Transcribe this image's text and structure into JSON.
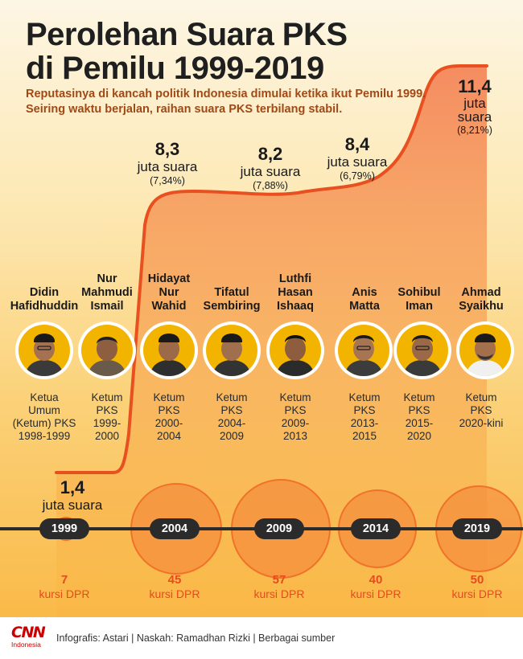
{
  "title": [
    "Perolehan Suara PKS",
    "di Pemilu 1999-2019"
  ],
  "subtitle": "Reputasinya di kancah politik Indonesia dimulai ketika ikut Pemilu 1999. Seiring waktu berjalan, raihan suara PKS terbilang stabil.",
  "votes": [
    {
      "value": "1,4",
      "unit": "juta suara",
      "pct": ""
    },
    {
      "value": "8,3",
      "unit": "juta suara",
      "pct": "(7,34%)"
    },
    {
      "value": "8,2",
      "unit": "juta suara",
      "pct": "(7,88%)"
    },
    {
      "value": "8,4",
      "unit": "juta suara",
      "pct": "(6,79%)"
    },
    {
      "value": "11,4",
      "unit": "juta suara",
      "pct": "(8,21%)"
    }
  ],
  "leaders": [
    {
      "name": [
        "Didin",
        "Hafidhuddin"
      ],
      "role": [
        "Ketua",
        "Umum",
        "(Ketum) PKS",
        "1998-1999"
      ]
    },
    {
      "name": [
        "Nur",
        "Mahmudi",
        "Ismail"
      ],
      "role": [
        "Ketum",
        "PKS",
        "1999-",
        "2000"
      ]
    },
    {
      "name": [
        "Hidayat",
        "Nur",
        "Wahid"
      ],
      "role": [
        "Ketum",
        "PKS",
        "2000-",
        "2004"
      ]
    },
    {
      "name": [
        "Tifatul",
        "Sembiring"
      ],
      "role": [
        "Ketum",
        "PKS",
        "2004-",
        "2009"
      ]
    },
    {
      "name": [
        "Luthfi",
        "Hasan",
        "Ishaaq"
      ],
      "role": [
        "Ketum",
        "PKS",
        "2009-",
        "2013"
      ]
    },
    {
      "name": [
        "Anis",
        "Matta"
      ],
      "role": [
        "Ketum",
        "PKS",
        "2013-",
        "2015"
      ]
    },
    {
      "name": [
        "Sohibul",
        "Iman"
      ],
      "role": [
        "Ketum",
        "PKS",
        "2015-",
        "2020"
      ]
    },
    {
      "name": [
        "Ahmad",
        "Syaikhu"
      ],
      "role": [
        "Ketum",
        "PKS",
        "2020-kini"
      ]
    }
  ],
  "elections": [
    {
      "year": "1999",
      "seats": "7",
      "seats_label": "kursi DPR"
    },
    {
      "year": "2004",
      "seats": "45",
      "seats_label": "kursi DPR"
    },
    {
      "year": "2009",
      "seats": "57",
      "seats_label": "kursi DPR"
    },
    {
      "year": "2014",
      "seats": "40",
      "seats_label": "kursi DPR"
    },
    {
      "year": "2019",
      "seats": "50",
      "seats_label": "kursi DPR"
    }
  ],
  "logo": {
    "brand": "CNN",
    "region": "Indonesia"
  },
  "credit": "Infografis: Astari | Naskah: Ramadhan Rizki | Berbagai sumber",
  "colors": {
    "accent": "#e84a1f",
    "line": "#e8501f",
    "photo_bg": "#f3b400",
    "text_dark": "#1f1f1f",
    "subtitle": "#a14916"
  }
}
